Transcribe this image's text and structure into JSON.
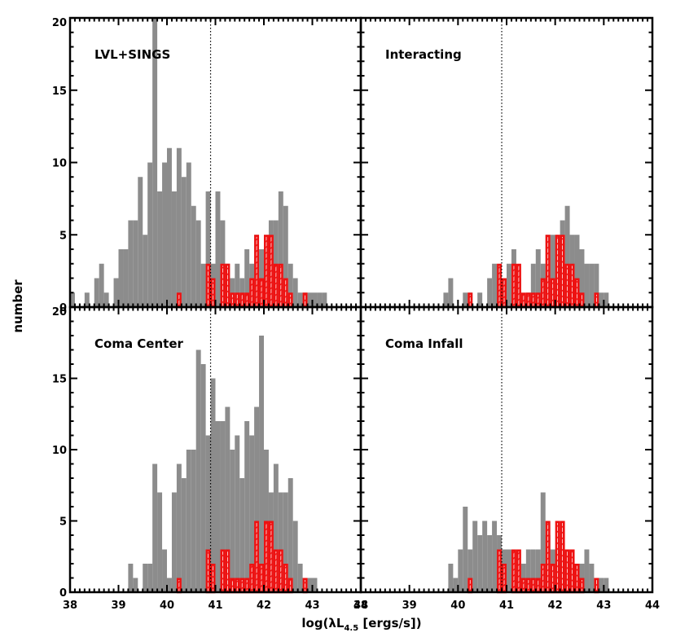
{
  "chart_data": {
    "type": "bar",
    "figure": {
      "ylabel": "number",
      "xlabel_prefix": "log(λL",
      "xlabel_sub": "4.5",
      "xlabel_suffix": " [ergs/s])",
      "xlim": [
        38,
        44
      ],
      "ylim": [
        0,
        20
      ],
      "x_ticks": [
        "38",
        "39",
        "40",
        "41",
        "42",
        "43",
        "44"
      ],
      "y_ticks": [
        "0",
        "5",
        "10",
        "15",
        "20"
      ],
      "bin_width": 0.1,
      "vertical_reference_line": 40.9,
      "grid": false
    },
    "colors": {
      "filled_histogram": "#8c8c8c",
      "hatched_histogram": "#ee1111",
      "reference_line": "#000000"
    },
    "red_histogram": {
      "description": "hatched red outline histogram, identical in every panel",
      "bins": [
        [
          40.2,
          1
        ],
        [
          40.8,
          3
        ],
        [
          40.9,
          2
        ],
        [
          41.1,
          3
        ],
        [
          41.2,
          3
        ],
        [
          41.3,
          1
        ],
        [
          41.4,
          1
        ],
        [
          41.5,
          1
        ],
        [
          41.6,
          1
        ],
        [
          41.7,
          2
        ],
        [
          41.8,
          5
        ],
        [
          41.9,
          2
        ],
        [
          42.0,
          5
        ],
        [
          42.1,
          5
        ],
        [
          42.2,
          3
        ],
        [
          42.3,
          3
        ],
        [
          42.4,
          2
        ],
        [
          42.5,
          1
        ],
        [
          42.8,
          1
        ]
      ]
    },
    "panels": [
      {
        "label": "LVL+SINGS",
        "position": "top-left",
        "gray_bins": [
          [
            38.0,
            1
          ],
          [
            38.3,
            1
          ],
          [
            38.5,
            2
          ],
          [
            38.6,
            3
          ],
          [
            38.7,
            1
          ],
          [
            38.9,
            2
          ],
          [
            39.0,
            4
          ],
          [
            39.1,
            4
          ],
          [
            39.2,
            6
          ],
          [
            39.3,
            6
          ],
          [
            39.4,
            9
          ],
          [
            39.5,
            5
          ],
          [
            39.6,
            10
          ],
          [
            39.7,
            20
          ],
          [
            39.8,
            8
          ],
          [
            39.9,
            10
          ],
          [
            40.0,
            11
          ],
          [
            40.1,
            8
          ],
          [
            40.2,
            11
          ],
          [
            40.3,
            9
          ],
          [
            40.4,
            10
          ],
          [
            40.5,
            7
          ],
          [
            40.6,
            6
          ],
          [
            40.7,
            3
          ],
          [
            40.8,
            8
          ],
          [
            40.9,
            3
          ],
          [
            41.0,
            8
          ],
          [
            41.1,
            6
          ],
          [
            41.2,
            3
          ],
          [
            41.3,
            2
          ],
          [
            41.4,
            3
          ],
          [
            41.5,
            2
          ],
          [
            41.6,
            4
          ],
          [
            41.7,
            3
          ],
          [
            41.8,
            5
          ],
          [
            41.9,
            4
          ],
          [
            42.0,
            5
          ],
          [
            42.1,
            6
          ],
          [
            42.2,
            6
          ],
          [
            42.3,
            8
          ],
          [
            42.4,
            7
          ],
          [
            42.5,
            3
          ],
          [
            42.6,
            2
          ],
          [
            42.7,
            1
          ],
          [
            42.8,
            1
          ],
          [
            42.9,
            1
          ],
          [
            43.0,
            1
          ],
          [
            43.1,
            1
          ],
          [
            43.2,
            1
          ]
        ]
      },
      {
        "label": "Interacting",
        "position": "top-right",
        "gray_bins": [
          [
            39.7,
            1
          ],
          [
            39.8,
            2
          ],
          [
            40.1,
            1
          ],
          [
            40.2,
            1
          ],
          [
            40.4,
            1
          ],
          [
            40.6,
            2
          ],
          [
            40.7,
            3
          ],
          [
            40.8,
            2
          ],
          [
            40.9,
            1
          ],
          [
            41.0,
            3
          ],
          [
            41.1,
            4
          ],
          [
            41.2,
            2
          ],
          [
            41.4,
            1
          ],
          [
            41.5,
            3
          ],
          [
            41.6,
            4
          ],
          [
            41.7,
            3
          ],
          [
            41.8,
            5
          ],
          [
            41.9,
            5
          ],
          [
            42.0,
            5
          ],
          [
            42.1,
            6
          ],
          [
            42.2,
            7
          ],
          [
            42.3,
            5
          ],
          [
            42.4,
            5
          ],
          [
            42.5,
            4
          ],
          [
            42.6,
            3
          ],
          [
            42.7,
            3
          ],
          [
            42.8,
            3
          ],
          [
            42.9,
            1
          ],
          [
            43.0,
            1
          ]
        ]
      },
      {
        "label": "Coma Center",
        "position": "bottom-left",
        "gray_bins": [
          [
            39.2,
            2
          ],
          [
            39.3,
            1
          ],
          [
            39.5,
            2
          ],
          [
            39.6,
            2
          ],
          [
            39.7,
            9
          ],
          [
            39.8,
            7
          ],
          [
            39.9,
            3
          ],
          [
            40.0,
            1
          ],
          [
            40.1,
            7
          ],
          [
            40.2,
            9
          ],
          [
            40.3,
            8
          ],
          [
            40.4,
            10
          ],
          [
            40.5,
            10
          ],
          [
            40.6,
            17
          ],
          [
            40.7,
            16
          ],
          [
            40.8,
            11
          ],
          [
            40.9,
            15
          ],
          [
            41.0,
            12
          ],
          [
            41.1,
            12
          ],
          [
            41.2,
            13
          ],
          [
            41.3,
            10
          ],
          [
            41.4,
            11
          ],
          [
            41.5,
            8
          ],
          [
            41.6,
            12
          ],
          [
            41.7,
            11
          ],
          [
            41.8,
            13
          ],
          [
            41.9,
            18
          ],
          [
            42.0,
            10
          ],
          [
            42.1,
            7
          ],
          [
            42.2,
            9
          ],
          [
            42.3,
            7
          ],
          [
            42.4,
            7
          ],
          [
            42.5,
            8
          ],
          [
            42.6,
            5
          ],
          [
            42.7,
            2
          ],
          [
            42.8,
            1
          ],
          [
            42.9,
            1
          ],
          [
            43.0,
            1
          ]
        ]
      },
      {
        "label": "Coma Infall",
        "position": "bottom-right",
        "gray_bins": [
          [
            39.8,
            2
          ],
          [
            39.9,
            1
          ],
          [
            40.0,
            3
          ],
          [
            40.1,
            6
          ],
          [
            40.2,
            3
          ],
          [
            40.3,
            5
          ],
          [
            40.4,
            4
          ],
          [
            40.5,
            5
          ],
          [
            40.6,
            4
          ],
          [
            40.7,
            5
          ],
          [
            40.8,
            4
          ],
          [
            40.9,
            3
          ],
          [
            41.0,
            3
          ],
          [
            41.1,
            1
          ],
          [
            41.2,
            1
          ],
          [
            41.3,
            2
          ],
          [
            41.4,
            3
          ],
          [
            41.5,
            3
          ],
          [
            41.6,
            3
          ],
          [
            41.7,
            7
          ],
          [
            41.8,
            4
          ],
          [
            41.9,
            3
          ],
          [
            42.0,
            3
          ],
          [
            42.1,
            3
          ],
          [
            42.2,
            3
          ],
          [
            42.3,
            2
          ],
          [
            42.4,
            2
          ],
          [
            42.5,
            2
          ],
          [
            42.6,
            3
          ],
          [
            42.7,
            2
          ],
          [
            42.8,
            1
          ],
          [
            42.9,
            1
          ],
          [
            43.0,
            1
          ]
        ]
      }
    ]
  }
}
